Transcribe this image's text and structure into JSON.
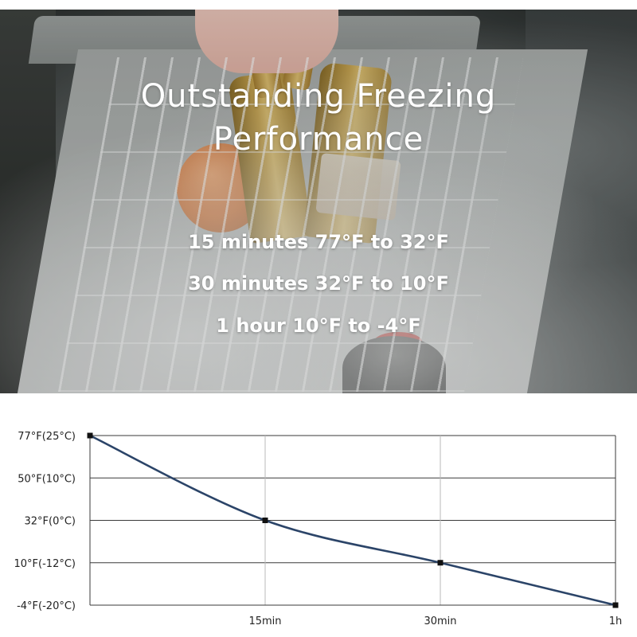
{
  "photo": {
    "headline": [
      "Outstanding Freezing",
      "Performance"
    ],
    "lines": [
      "15 minutes 77°F to 32°F",
      "30 minutes 32°F to 10°F",
      "1 hour 10°F to -4°F"
    ]
  },
  "chart_data": {
    "type": "line",
    "title": "",
    "xlabel": "",
    "ylabel": "",
    "x": [
      0,
      15,
      30,
      60
    ],
    "x_tick_labels": [
      "",
      "15min",
      "30min",
      "1h"
    ],
    "y_ticks": [
      77,
      50,
      32,
      10,
      -4
    ],
    "y_tick_labels": [
      "77°F(25°C)",
      "50°F(10°C)",
      "32°F(0°C)",
      "10°F(-12°C)",
      "-4°F(-20°C)"
    ],
    "series": [
      {
        "values": [
          77,
          32,
          10,
          -4
        ],
        "color": "#2b4468"
      }
    ],
    "grid": true,
    "marker_color": "#111111"
  }
}
